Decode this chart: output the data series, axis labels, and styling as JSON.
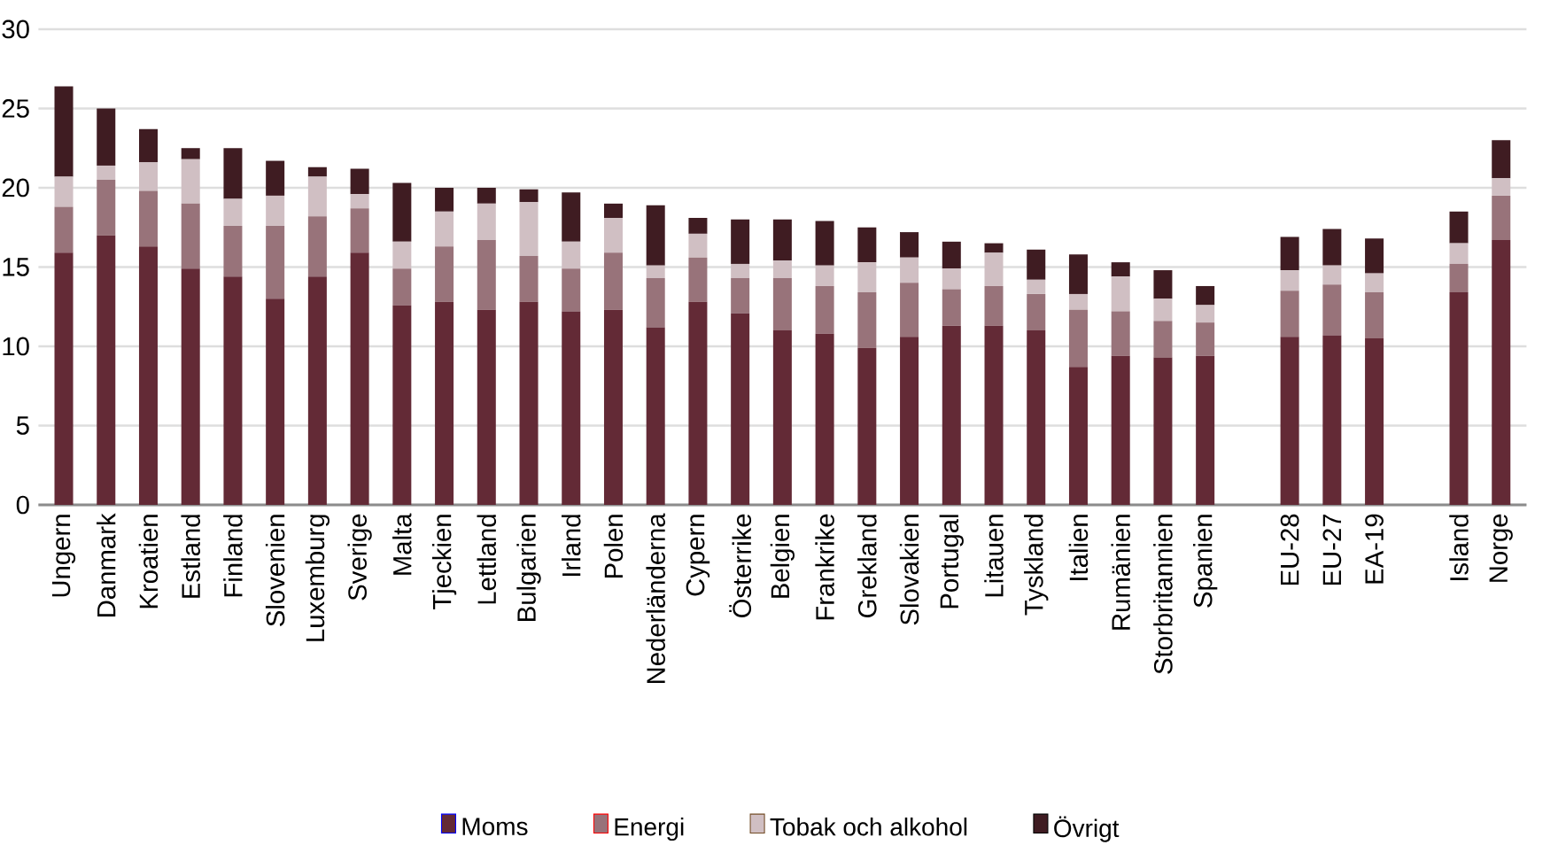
{
  "chart_data": {
    "type": "bar",
    "stacked": true,
    "grid": "y",
    "legend": "bottom",
    "categories": [
      "Ungern",
      "Danmark",
      "Kroatien",
      "Estland",
      "Finland",
      "Slovenien",
      "Luxemburg",
      "Sverige",
      "Malta",
      "Tjeckien",
      "Lettland",
      "Bulgarien",
      "Irland",
      "Polen",
      "Nederländerna",
      "Cypern",
      "Österrike",
      "Belgien",
      "Frankrike",
      "Grekland",
      "Slovakien",
      "Portugal",
      "Litauen",
      "Tyskland",
      "Italien",
      "Rumänien",
      "Storbritannien",
      "Spanien",
      null,
      "EU-28",
      "EU-27",
      "EA-19",
      null,
      "Island",
      "Norge"
    ],
    "ylim": [
      0,
      30
    ],
    "yticks": [
      0,
      5,
      10,
      15,
      20,
      25,
      30
    ],
    "series": [
      {
        "name": "Moms",
        "color": "#632a36",
        "values": [
          15.9,
          17.0,
          16.3,
          14.9,
          14.4,
          13.0,
          14.4,
          15.9,
          12.6,
          12.8,
          12.3,
          12.8,
          12.2,
          12.3,
          11.2,
          12.8,
          12.1,
          11.0,
          10.8,
          9.9,
          10.6,
          11.3,
          11.3,
          11.0,
          8.7,
          9.4,
          9.3,
          9.4,
          null,
          10.6,
          10.7,
          10.5,
          null,
          13.4,
          16.7
        ]
      },
      {
        "name": "Energi",
        "color": "#98737a",
        "values": [
          2.9,
          3.5,
          3.5,
          4.1,
          3.2,
          4.6,
          3.8,
          2.8,
          2.3,
          3.5,
          4.4,
          2.9,
          2.7,
          3.6,
          3.1,
          2.8,
          2.2,
          3.3,
          3.0,
          3.5,
          3.4,
          2.3,
          2.5,
          2.3,
          3.6,
          2.8,
          2.3,
          2.1,
          null,
          2.9,
          3.2,
          2.9,
          null,
          1.8,
          2.8
        ]
      },
      {
        "name": "Tobak och alkohol",
        "color": "#d0bfc3",
        "values": [
          1.9,
          0.9,
          1.8,
          2.8,
          1.7,
          1.9,
          2.5,
          0.9,
          1.7,
          2.2,
          2.3,
          3.4,
          1.7,
          2.2,
          0.8,
          1.5,
          0.9,
          1.1,
          1.3,
          1.9,
          1.6,
          1.3,
          2.1,
          0.9,
          1.0,
          2.2,
          1.4,
          1.1,
          null,
          1.3,
          1.2,
          1.2,
          null,
          1.3,
          1.1
        ]
      },
      {
        "name": "Övrigt",
        "color": "#3f1c22",
        "values": [
          5.7,
          3.6,
          2.1,
          0.7,
          3.2,
          2.2,
          0.6,
          1.6,
          3.7,
          1.5,
          1.0,
          0.8,
          3.1,
          0.9,
          3.8,
          1.0,
          2.8,
          2.6,
          2.8,
          2.2,
          1.6,
          1.7,
          0.6,
          1.9,
          2.5,
          0.9,
          1.8,
          1.2,
          null,
          2.1,
          2.3,
          2.2,
          null,
          2.0,
          2.4
        ]
      }
    ]
  }
}
